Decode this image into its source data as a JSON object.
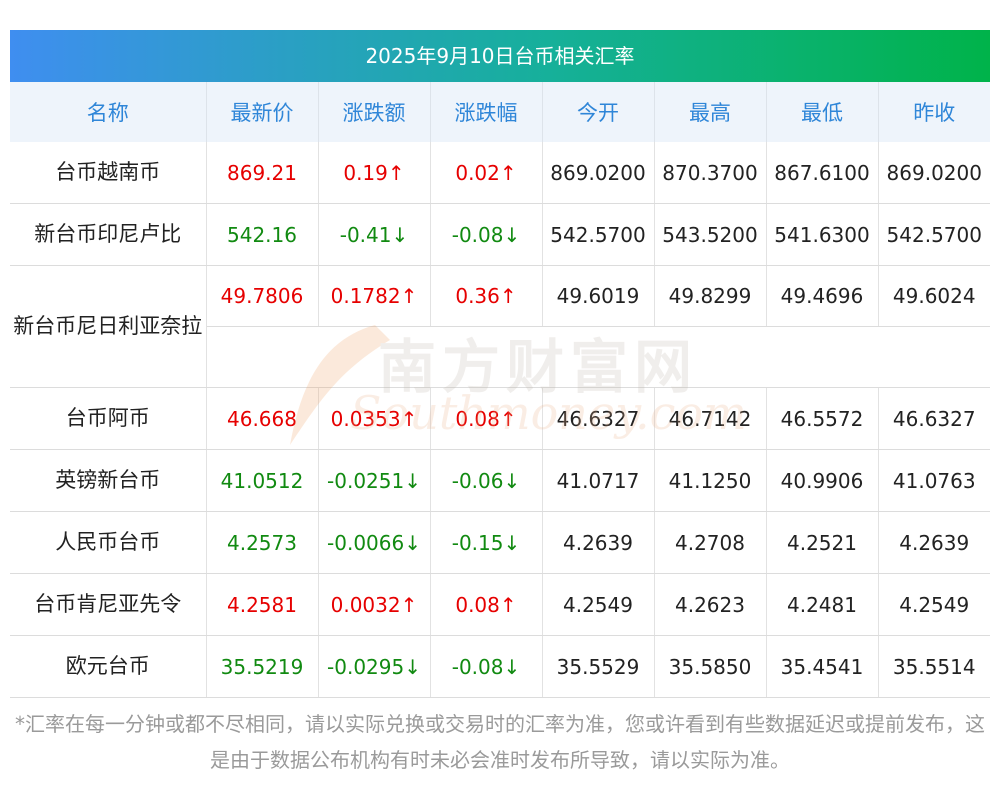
{
  "title": "2025年9月10日台币相关汇率",
  "headers": [
    "名称",
    "最新价",
    "涨跌额",
    "涨跌幅",
    "今开",
    "最高",
    "最低",
    "昨收"
  ],
  "rows": [
    {
      "name": "台币越南币",
      "latest": "869.21",
      "change": "0.19↑",
      "pct": "0.02↑",
      "open": "869.0200",
      "high": "870.3700",
      "low": "867.6100",
      "prev": "869.0200",
      "dir": "up"
    },
    {
      "name": "新台币印尼卢比",
      "latest": "542.16",
      "change": "-0.41↓",
      "pct": "-0.08↓",
      "open": "542.5700",
      "high": "543.5200",
      "low": "541.6300",
      "prev": "542.5700",
      "dir": "down"
    },
    {
      "name": "新台币尼日利亚奈拉",
      "latest": "49.7806",
      "change": "0.1782↑",
      "pct": "0.36↑",
      "open": "49.6019",
      "high": "49.8299",
      "low": "49.4696",
      "prev": "49.6024",
      "dir": "up"
    },
    {
      "name": "台币阿币",
      "latest": "46.668",
      "change": "0.0353↑",
      "pct": "0.08↑",
      "open": "46.6327",
      "high": "46.7142",
      "low": "46.5572",
      "prev": "46.6327",
      "dir": "up"
    },
    {
      "name": "英镑新台币",
      "latest": "41.0512",
      "change": "-0.0251↓",
      "pct": "-0.06↓",
      "open": "41.0717",
      "high": "41.1250",
      "low": "40.9906",
      "prev": "41.0763",
      "dir": "down"
    },
    {
      "name": "人民币台币",
      "latest": "4.2573",
      "change": "-0.0066↓",
      "pct": "-0.15↓",
      "open": "4.2639",
      "high": "4.2708",
      "low": "4.2521",
      "prev": "4.2639",
      "dir": "down"
    },
    {
      "name": "台币肯尼亚先令",
      "latest": "4.2581",
      "change": "0.0032↑",
      "pct": "0.08↑",
      "open": "4.2549",
      "high": "4.2623",
      "low": "4.2481",
      "prev": "4.2549",
      "dir": "up"
    },
    {
      "name": "欧元台币",
      "latest": "35.5219",
      "change": "-0.0295↓",
      "pct": "-0.08↓",
      "open": "35.5529",
      "high": "35.5850",
      "low": "35.4541",
      "prev": "35.5514",
      "dir": "down"
    }
  ],
  "colors": {
    "up": "#e60000",
    "down": "#118a11",
    "header_text": "#2f86d8",
    "header_bg": "#eef4fb"
  },
  "watermark": {
    "cn": "南方财富网",
    "en": "Southmoney.com"
  },
  "footnote": "*汇率在每一分钟或都不尽相同，请以实际兑换或交易时的汇率为准，您或许看到有些数据延迟或提前发布，这是由于数据公布机构有时未必会准时发布所导致，请以实际为准。"
}
